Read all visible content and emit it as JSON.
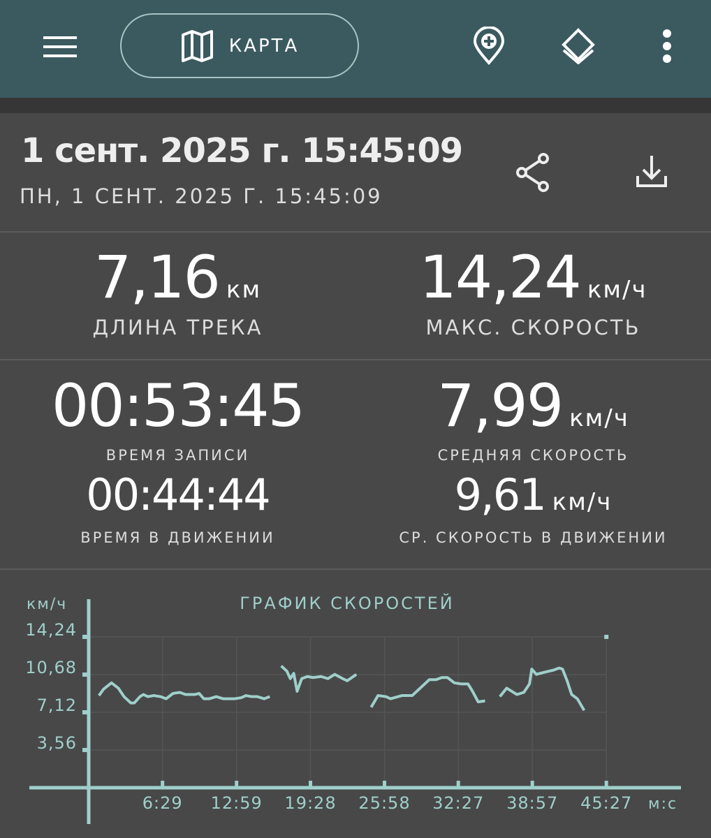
{
  "topbar": {
    "map_label": "КАРТА",
    "icons": [
      "menu-icon",
      "map-icon",
      "add-location-icon",
      "layers-icon",
      "more-vert-icon"
    ]
  },
  "track": {
    "title": "1 сент. 2025 г. 15:45:09",
    "subtitle": "ПН, 1 СЕНТ. 2025 Г. 15:45:09",
    "icons": [
      "share-icon",
      "download-icon"
    ]
  },
  "stats": {
    "distance": {
      "value": "7,16",
      "unit": "км",
      "label": "ДЛИНА ТРЕКА"
    },
    "max_speed": {
      "value": "14,24",
      "unit": "км/ч",
      "label": "МАКС. СКОРОСТЬ"
    },
    "total_time": {
      "value": "00:53:45",
      "label": "ВРЕМЯ ЗАПИСИ"
    },
    "avg_speed": {
      "value": "7,99",
      "unit": "км/ч",
      "label": "СРЕДНЯЯ СКОРОСТЬ"
    },
    "moving_time": {
      "value": "00:44:44",
      "label": "ВРЕМЯ В ДВИЖЕНИИ"
    },
    "avg_moving_speed": {
      "value": "9,61",
      "unit": "км/ч",
      "label": "СР. СКОРОСТЬ В ДВИЖЕНИИ"
    }
  },
  "colors": {
    "header": "#3b5a60",
    "background": "#484848",
    "chart": "#9fcfcb"
  },
  "chart_data": {
    "type": "line",
    "title": "ГРАФИК СКОРОСТЕЙ",
    "ylabel": "км/ч",
    "xlabel": "м:с",
    "ylim": [
      0,
      14.24
    ],
    "xlim_minutes": [
      0,
      45.45
    ],
    "grid": true,
    "yticks": [
      "3,56",
      "7,12",
      "10,68",
      "14,24"
    ],
    "ytick_values": [
      3.56,
      7.12,
      10.68,
      14.24
    ],
    "xticks": [
      "6:29",
      "12:59",
      "19:28",
      "25:58",
      "32:27",
      "38:57",
      "45:27"
    ],
    "xtick_values_minutes": [
      6.48,
      12.98,
      19.47,
      25.97,
      32.45,
      38.95,
      45.45
    ],
    "segments": [
      [
        [
          0.9,
          8.7
        ],
        [
          1.3,
          9.3
        ],
        [
          2.0,
          9.9
        ],
        [
          2.6,
          9.4
        ],
        [
          3.1,
          8.6
        ],
        [
          3.7,
          8.0
        ],
        [
          4.0,
          8.0
        ],
        [
          4.5,
          8.6
        ],
        [
          4.8,
          8.8
        ],
        [
          5.2,
          8.6
        ],
        [
          5.7,
          8.7
        ],
        [
          6.3,
          8.6
        ],
        [
          6.8,
          8.4
        ],
        [
          7.4,
          8.9
        ],
        [
          8.0,
          9.0
        ],
        [
          8.5,
          8.8
        ],
        [
          9.3,
          8.8
        ],
        [
          9.7,
          8.9
        ],
        [
          10.1,
          8.4
        ],
        [
          10.6,
          8.4
        ],
        [
          11.2,
          8.6
        ],
        [
          11.8,
          8.4
        ],
        [
          12.8,
          8.4
        ],
        [
          13.4,
          8.5
        ],
        [
          13.8,
          8.7
        ],
        [
          14.3,
          8.6
        ],
        [
          14.8,
          8.6
        ],
        [
          15.4,
          8.4
        ],
        [
          15.9,
          8.6
        ]
      ],
      [
        [
          16.9,
          11.5
        ],
        [
          17.4,
          11.0
        ],
        [
          17.7,
          10.3
        ],
        [
          18.0,
          10.8
        ],
        [
          18.3,
          9.1
        ],
        [
          18.7,
          10.3
        ],
        [
          19.2,
          10.5
        ],
        [
          19.7,
          10.4
        ],
        [
          20.4,
          10.5
        ],
        [
          21.0,
          10.3
        ],
        [
          21.6,
          10.7
        ],
        [
          22.3,
          10.3
        ],
        [
          22.7,
          10.1
        ],
        [
          23.5,
          10.7
        ]
      ],
      [
        [
          24.8,
          7.6
        ],
        [
          25.4,
          8.7
        ],
        [
          26.1,
          8.6
        ],
        [
          26.5,
          8.4
        ],
        [
          27.5,
          8.7
        ],
        [
          28.4,
          8.7
        ],
        [
          29.1,
          9.4
        ],
        [
          29.9,
          10.2
        ],
        [
          30.5,
          10.2
        ],
        [
          31.0,
          10.4
        ],
        [
          31.5,
          10.4
        ],
        [
          32.1,
          9.9
        ],
        [
          32.7,
          9.8
        ],
        [
          33.3,
          9.8
        ],
        [
          33.7,
          9.1
        ],
        [
          34.2,
          8.1
        ],
        [
          34.8,
          8.2
        ]
      ],
      [
        [
          36.1,
          8.6
        ],
        [
          36.7,
          9.4
        ],
        [
          37.6,
          8.8
        ],
        [
          38.2,
          9.0
        ],
        [
          38.7,
          9.8
        ],
        [
          38.9,
          11.2
        ],
        [
          39.3,
          10.7
        ],
        [
          40.0,
          10.9
        ],
        [
          40.8,
          11.1
        ],
        [
          41.3,
          11.3
        ],
        [
          41.6,
          11.2
        ],
        [
          42.0,
          10.1
        ],
        [
          42.4,
          8.8
        ],
        [
          42.9,
          8.4
        ],
        [
          43.5,
          7.3
        ]
      ],
      [
        [
          45.45,
          14.24
        ]
      ]
    ]
  }
}
